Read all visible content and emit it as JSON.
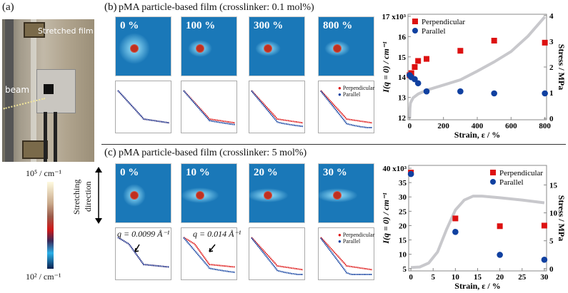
{
  "panel_a": {
    "label": "(a)",
    "photo_annotations": {
      "film": "Stretched film",
      "beam": "beam"
    },
    "colorbar": {
      "max_label": "10⁵ / cm⁻¹",
      "min_label": "10² / cm⁻¹"
    },
    "stretch_label_1": "Stretching",
    "stretch_label_2": "direction"
  },
  "panel_b": {
    "label": "(b)",
    "title": "pMA particle-based film (crosslinker: 0.1 mol%)",
    "strains": [
      "0 %",
      "100 %",
      "300 %",
      "800 %"
    ]
  },
  "panel_c": {
    "label": "(c)",
    "title": "pMA particle-based film (crosslinker: 5 mol%)",
    "strains": [
      "0 %",
      "10 %",
      "20 %",
      "30 %"
    ],
    "annotations": [
      "q = 0.0099 Å⁻¹",
      "q = 0.014 Å⁻¹"
    ]
  },
  "mini_legend": {
    "perp": "Perpendicular",
    "par": "Parallel"
  },
  "colors": {
    "perpendicular": "#dd1111",
    "parallel": "#1040a0",
    "stress": "#c8c8cc"
  },
  "chart_data": [
    {
      "type": "scatter",
      "xlabel": "Strain, ε / %",
      "ylabel": "I(q = 0) / cm⁻¹",
      "y2label": "Stress / MPa",
      "xlim": [
        -10,
        810
      ],
      "ylim": [
        11.9,
        17.1
      ],
      "y2lim": [
        -0.05,
        4.05
      ],
      "xticks": [
        "0",
        "200",
        "400",
        "600",
        "800"
      ],
      "yticks": [
        "12",
        "13",
        "14",
        "15",
        "16",
        "17 x10³"
      ],
      "y2ticks": [
        "0",
        "1",
        "2",
        "3",
        "4"
      ],
      "legend": "top-left",
      "series": [
        {
          "name": "Perpendicular",
          "marker": "square",
          "x": [
            0,
            10,
            30,
            50,
            100,
            300,
            500,
            800
          ],
          "y": [
            14.1,
            14.2,
            14.5,
            14.8,
            14.9,
            15.3,
            15.8,
            15.7
          ]
        },
        {
          "name": "Parallel",
          "marker": "circle",
          "x": [
            0,
            10,
            30,
            50,
            100,
            300,
            500,
            800
          ],
          "y": [
            14.1,
            14.0,
            13.9,
            13.7,
            13.3,
            13.3,
            13.2,
            13.2
          ]
        }
      ],
      "stress_curve": {
        "x": [
          0,
          2,
          5,
          20,
          50,
          100,
          200,
          300,
          400,
          500,
          600,
          700,
          800
        ],
        "y": [
          0,
          0.4,
          0.6,
          0.8,
          0.95,
          1.1,
          1.3,
          1.5,
          1.84,
          2.2,
          2.6,
          3.2,
          3.95
        ]
      }
    },
    {
      "type": "scatter",
      "xlabel": "Strain, ε / %",
      "ylabel": "I(q = 0) / cm⁻¹",
      "y2label": "Stress / MPa",
      "xlim": [
        -0.5,
        30.5
      ],
      "ylim": [
        4.2,
        41
      ],
      "y2lim": [
        -0.4,
        18.5
      ],
      "xticks": [
        "0",
        "5",
        "10",
        "15",
        "20",
        "25",
        "30"
      ],
      "yticks": [
        "5",
        "10",
        "15",
        "20",
        "25",
        "30",
        "35",
        "40 x10³"
      ],
      "y2ticks": [
        "0",
        "5",
        "10",
        "15"
      ],
      "legend": "top-right",
      "series": [
        {
          "name": "Perpendicular",
          "marker": "square",
          "x": [
            0,
            10,
            20,
            30
          ],
          "y": [
            38.5,
            22.5,
            19.8,
            20.0
          ]
        },
        {
          "name": "Parallel",
          "marker": "circle",
          "x": [
            0,
            10,
            20,
            30
          ],
          "y": [
            38.0,
            17.8,
            9.8,
            8.1
          ]
        }
      ],
      "stress_curve": {
        "x": [
          0,
          2,
          4,
          6,
          8,
          10,
          12,
          14,
          16,
          20,
          25,
          30
        ],
        "y": [
          0.2,
          0.3,
          1,
          3,
          7,
          10.5,
          12.3,
          13,
          13,
          12.7,
          12.3,
          11.8
        ]
      }
    }
  ]
}
